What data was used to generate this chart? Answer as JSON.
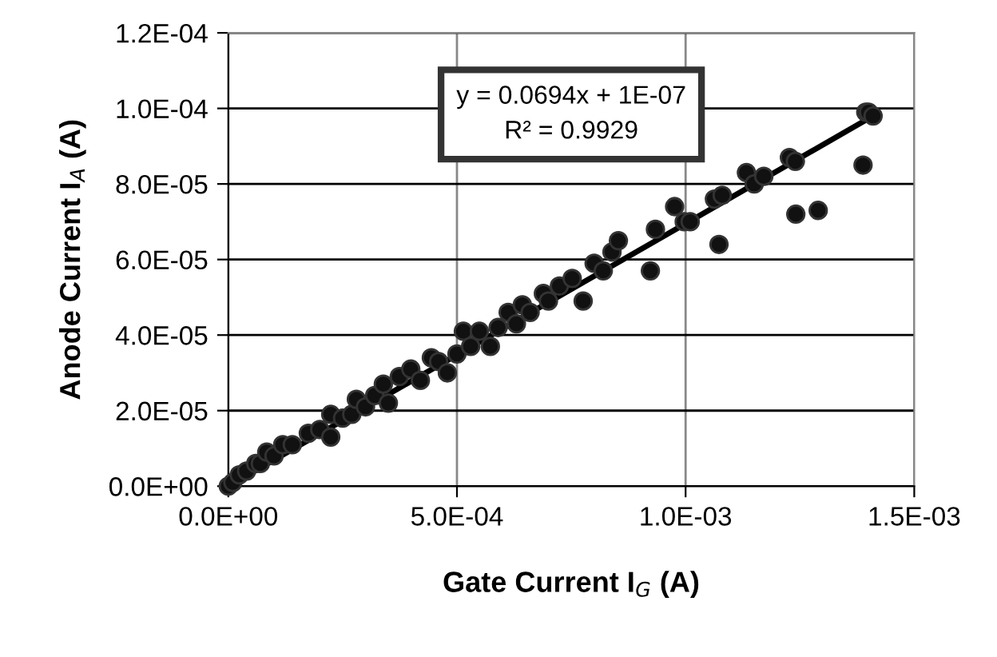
{
  "chart_data": {
    "type": "scatter",
    "xlabel": "Gate Current I$_{G}$ (A)",
    "ylabel": "Anode Current I$_{A}$ (A)",
    "annotations": [
      "y = 0.0694x + 1E-07",
      "R² = 0.9929"
    ],
    "xlim": [
      0,
      0.0015
    ],
    "xticks": [
      {
        "value": 0,
        "label": "0.0E+00"
      },
      {
        "value": 0.0005,
        "label": "5.0E-04"
      },
      {
        "value": 0.001,
        "label": "1.0E-03"
      },
      {
        "value": 0.0015,
        "label": "1.5E-03"
      }
    ],
    "ylim": [
      0,
      0.00012
    ],
    "yticks": [
      {
        "value": 0,
        "label": "0.0E+00"
      },
      {
        "value": 2e-05,
        "label": "2.0E-05"
      },
      {
        "value": 4e-05,
        "label": "4.0E-05"
      },
      {
        "value": 6e-05,
        "label": "6.0E-05"
      },
      {
        "value": 8e-05,
        "label": "8.0E-05"
      },
      {
        "value": 0.0001,
        "label": "1.0E-04"
      },
      {
        "value": 0.00012,
        "label": "1.2E-04"
      }
    ],
    "grid": true,
    "series": [
      {
        "color": "#111111",
        "marker": "circle",
        "x": [
          0,
          1e-05,
          2.4e-05,
          4e-05,
          6e-05,
          7e-05,
          8.4e-05,
          0.0001,
          0.000119,
          0.00014,
          0.000175,
          0.0002,
          0.000224,
          0.000224,
          0.00025,
          0.00027,
          0.00028,
          0.0003,
          0.00032,
          0.000339,
          0.00035,
          0.000374,
          0.000399,
          0.00042,
          0.000444,
          0.00046,
          0.000479,
          0.0005,
          0.000514,
          0.00053,
          0.000549,
          0.000573,
          0.00059,
          0.000612,
          0.00063,
          0.000643,
          0.00066,
          0.000689,
          0.0007,
          0.000724,
          0.000752,
          0.000776,
          0.0008,
          0.00082,
          0.000839,
          0.000853,
          0.000923,
          0.000934,
          0.000976,
          0.000997,
          0.00101,
          0.001063,
          0.00108,
          0.001073,
          0.001133,
          0.00115,
          0.001171,
          0.001227,
          0.00124,
          0.001241,
          0.00129,
          0.001388,
          0.001394,
          0.0014,
          0.00141
        ],
        "values": [
          0,
          1e-06,
          3e-06,
          4e-06,
          6e-06,
          6e-06,
          9e-06,
          8e-06,
          1.1e-05,
          1.1e-05,
          1.4e-05,
          1.5e-05,
          1.9e-05,
          1.3e-05,
          1.8e-05,
          1.9e-05,
          2.3e-05,
          2.1e-05,
          2.4e-05,
          2.7e-05,
          2.2e-05,
          2.9e-05,
          3.1e-05,
          2.8e-05,
          3.4e-05,
          3.3e-05,
          3e-05,
          3.5e-05,
          4.1e-05,
          3.7e-05,
          4.1e-05,
          3.7e-05,
          4.2e-05,
          4.6e-05,
          4.3e-05,
          4.8e-05,
          4.6e-05,
          5.1e-05,
          4.9e-05,
          5.3e-05,
          5.5e-05,
          4.9e-05,
          5.9e-05,
          5.7e-05,
          6.2e-05,
          6.5e-05,
          5.7e-05,
          6.8e-05,
          7.4e-05,
          7e-05,
          7e-05,
          7.6e-05,
          7.7e-05,
          6.4e-05,
          8.3e-05,
          8e-05,
          8.2e-05,
          8.7e-05,
          8.6e-05,
          7.2e-05,
          7.3e-05,
          8.5e-05,
          9.9e-05,
          9.9e-05,
          9.8e-05
        ]
      },
      {
        "type": "line",
        "color": "#000000",
        "x": [
          0,
          0.00141
        ],
        "values": [
          0,
          9.8e-05
        ]
      }
    ]
  }
}
